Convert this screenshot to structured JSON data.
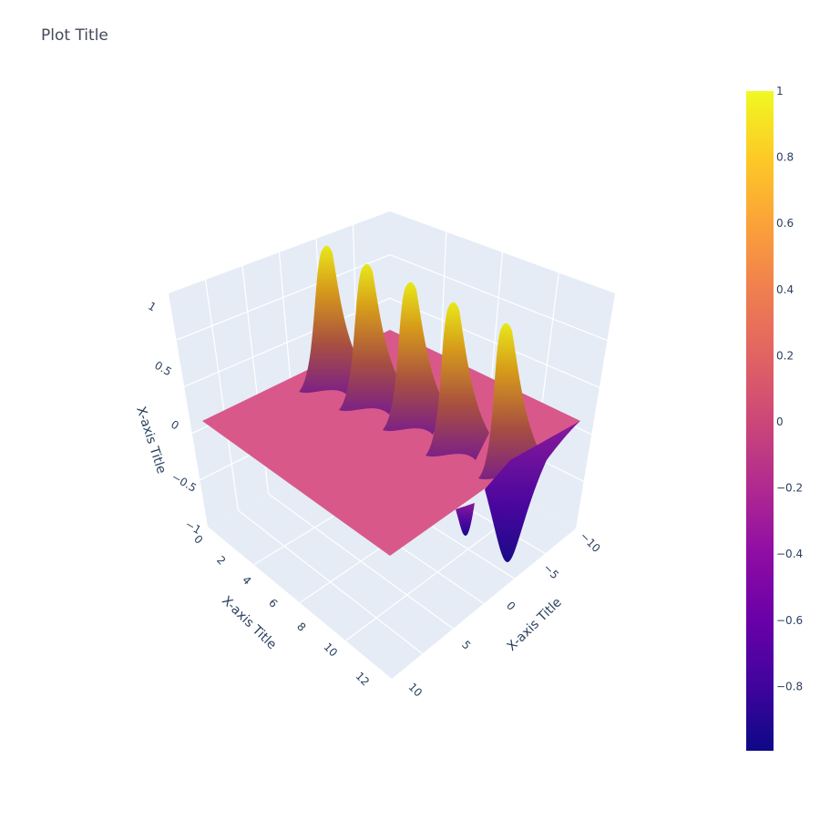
{
  "title": "Plot Title",
  "chart_data": {
    "type": "surface",
    "title": "Plot Title",
    "colorscale": "plasma",
    "colors": {
      "min": "#0d0887",
      "mid": "#cc4778",
      "max": "#f0f921"
    },
    "description_of_series": "z = 0 plane with 5 Gaussian-like ridges peaking near 1 and two troughs near -1 at the high end of the right axis",
    "axes": {
      "x": {
        "title": "X-axis Title",
        "ticks": [
          "0",
          "2",
          "4",
          "6",
          "8",
          "10",
          "12"
        ],
        "range": [
          0,
          13
        ]
      },
      "y": {
        "title": "X-axis Title",
        "ticks": [
          "−10",
          "−5",
          "0",
          "5",
          "10"
        ],
        "range": [
          -10,
          10
        ]
      },
      "z": {
        "title": "X-axis Title",
        "ticks": [
          "1",
          "0.5",
          "0",
          "−0.5",
          "−1"
        ],
        "range": [
          -1,
          1
        ]
      }
    },
    "peaks": [
      {
        "index": 1,
        "z": 1.0
      },
      {
        "index": 2,
        "z": 1.0
      },
      {
        "index": 3,
        "z": 1.0
      },
      {
        "index": 4,
        "z": 1.0
      },
      {
        "index": 5,
        "z": 1.0
      }
    ],
    "troughs": [
      {
        "index": 1,
        "z": -0.8
      },
      {
        "index": 2,
        "z": -1.0
      }
    ],
    "colorbar": {
      "ticks": [
        "1",
        "0.8",
        "0.6",
        "0.4",
        "0.2",
        "0",
        "−0.2",
        "−0.4",
        "−0.6",
        "−0.8"
      ],
      "range": [
        -1,
        1
      ]
    }
  }
}
